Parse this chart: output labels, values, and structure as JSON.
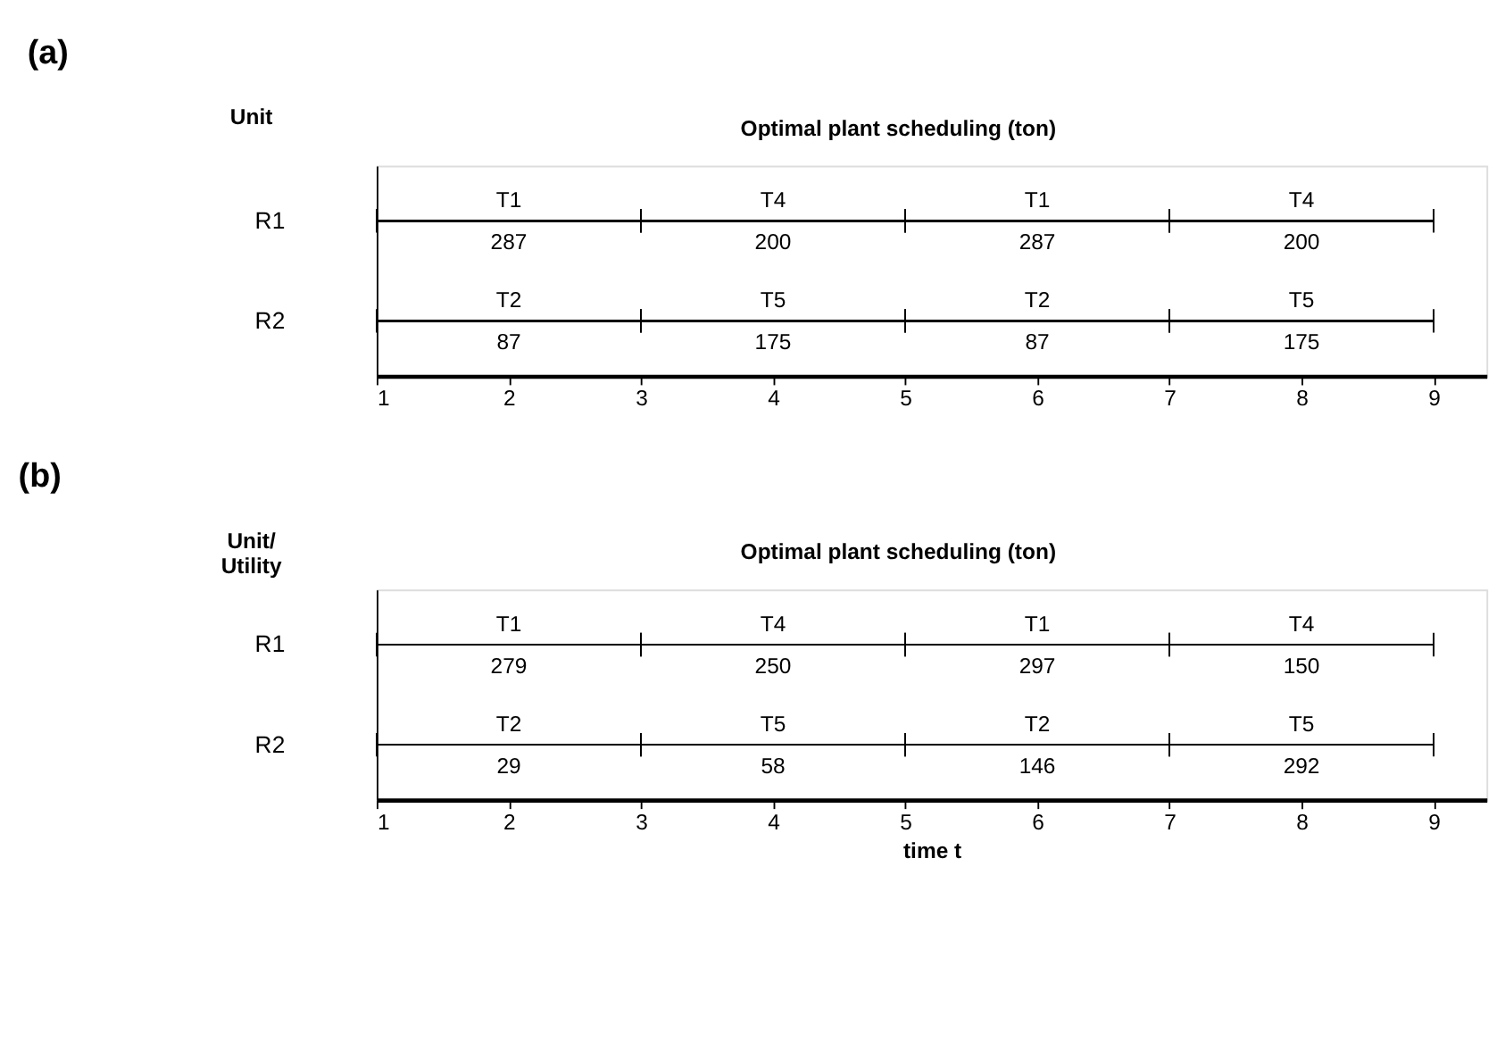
{
  "chart_data": [
    {
      "type": "bar",
      "orientation": "horizontal",
      "title": "(a)",
      "subtitle": "Optimal plant scheduling (ton)",
      "ylabel": "Unit",
      "categories": [
        "R1",
        "R2"
      ],
      "xlim": [
        1,
        9.4
      ],
      "xticks": [
        1,
        2,
        3,
        4,
        5,
        6,
        7,
        8,
        9
      ],
      "grid": false,
      "legend": false,
      "series": [
        {
          "name": "T1",
          "color": "#000000",
          "base": [
            1,
            null
          ],
          "values": [
            2,
            null
          ]
        },
        {
          "name": "T4",
          "color": "#000000",
          "base": [
            3,
            null
          ],
          "values": [
            2,
            null
          ]
        },
        {
          "name": "T1",
          "color": "#000000",
          "base": [
            5,
            null
          ],
          "values": [
            2,
            null
          ]
        },
        {
          "name": "T4",
          "color": "#000000",
          "base": [
            7,
            null
          ],
          "values": [
            2,
            null
          ]
        },
        {
          "name": "T2",
          "color": "#000000",
          "base": [
            null,
            1
          ],
          "values": [
            null,
            2
          ]
        },
        {
          "name": "T5",
          "color": "#000000",
          "base": [
            null,
            3
          ],
          "values": [
            null,
            2
          ]
        },
        {
          "name": "T2",
          "color": "#000000",
          "base": [
            null,
            5
          ],
          "values": [
            null,
            2
          ]
        },
        {
          "name": "T5",
          "color": "#000000",
          "base": [
            null,
            7
          ],
          "values": [
            null,
            2
          ]
        }
      ],
      "annotations": [
        "287",
        "200",
        "287",
        "200",
        "87",
        "175",
        "87",
        "175"
      ]
    },
    {
      "type": "bar",
      "orientation": "horizontal",
      "title": "(b)",
      "subtitle": "Optimal plant scheduling (ton)",
      "ylabel": "Unit/\nUtility",
      "xlabel": "time t",
      "categories": [
        "R1",
        "R2"
      ],
      "xlim": [
        1,
        9.4
      ],
      "xticks": [
        1,
        2,
        3,
        4,
        5,
        6,
        7,
        8,
        9
      ],
      "grid": false,
      "legend": false,
      "series": [
        {
          "name": "T1",
          "color": "#000000",
          "base": [
            1,
            null
          ],
          "values": [
            2,
            null
          ]
        },
        {
          "name": "T4",
          "color": "#000000",
          "base": [
            3,
            null
          ],
          "values": [
            2,
            null
          ]
        },
        {
          "name": "T1",
          "color": "#000000",
          "base": [
            5,
            null
          ],
          "values": [
            2,
            null
          ]
        },
        {
          "name": "T4",
          "color": "#000000",
          "base": [
            7,
            null
          ],
          "values": [
            2,
            null
          ]
        },
        {
          "name": "T2",
          "color": "#000000",
          "base": [
            null,
            1
          ],
          "values": [
            null,
            2
          ]
        },
        {
          "name": "T5",
          "color": "#000000",
          "base": [
            null,
            3
          ],
          "values": [
            null,
            2
          ]
        },
        {
          "name": "T2",
          "color": "#000000",
          "base": [
            null,
            5
          ],
          "values": [
            null,
            2
          ]
        },
        {
          "name": "T5",
          "color": "#000000",
          "base": [
            null,
            7
          ],
          "values": [
            null,
            2
          ]
        }
      ],
      "annotations": [
        "279",
        "250",
        "297",
        "150",
        "29",
        "58",
        "146",
        "292"
      ]
    }
  ]
}
